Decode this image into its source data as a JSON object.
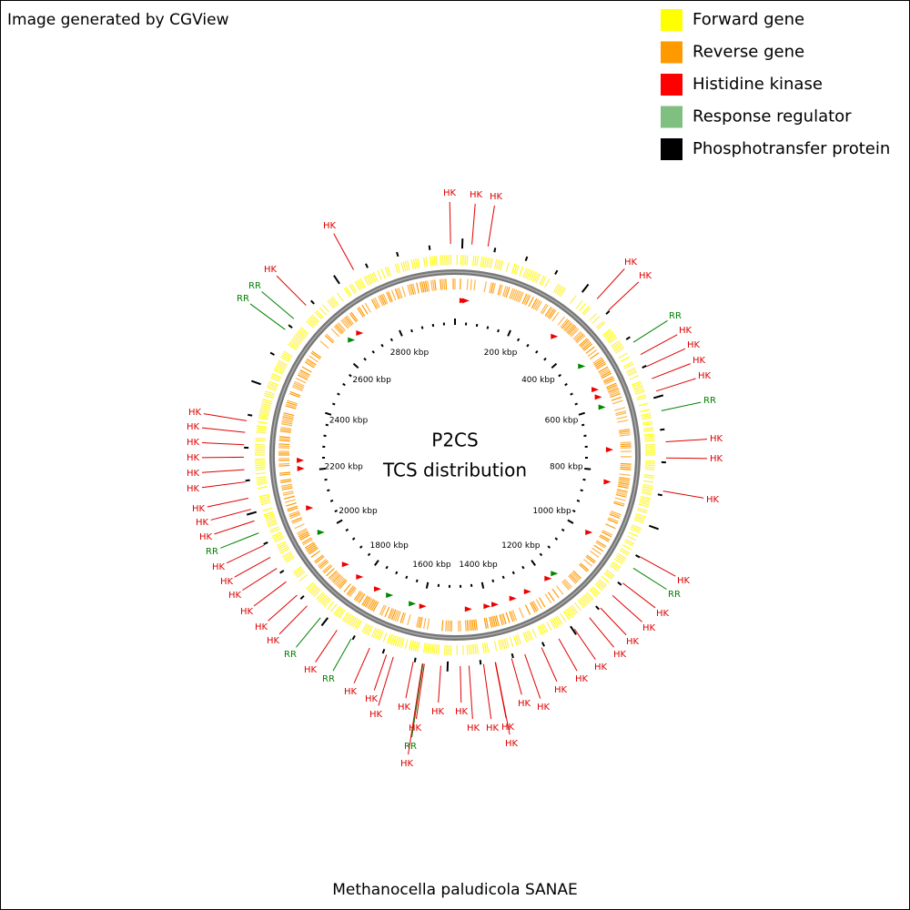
{
  "header": "Image generated by CGView",
  "legend": [
    {
      "label": "Forward gene",
      "color": "#ffff00"
    },
    {
      "label": "Reverse gene",
      "color": "#ff9900"
    },
    {
      "label": "Histidine kinase",
      "color": "#ff0000"
    },
    {
      "label": "Response regulator",
      "color": "#7fbf7f"
    },
    {
      "label": "Phosphotransfer protein",
      "color": "#000000"
    }
  ],
  "center": {
    "title": "P2CS",
    "subtitle": "TCS distribution"
  },
  "ruler": {
    "labels": [
      "200 kbp",
      "400 kbp",
      "600 kbp",
      "800 kbp",
      "1000 kbp",
      "1200 kbp",
      "1400 kbp",
      "1600 kbp",
      "1800 kbp",
      "2000 kbp",
      "2200 kbp",
      "2400 kbp",
      "2600 kbp",
      "2800 kbp"
    ]
  },
  "features": [
    {
      "label": "HK",
      "color": "#e00000"
    },
    {
      "label": "HK",
      "color": "#e00000"
    },
    {
      "label": "HK",
      "color": "#e00000"
    },
    {
      "label": "HK",
      "color": "#e00000"
    },
    {
      "label": "HK",
      "color": "#e00000"
    },
    {
      "label": "RR",
      "color": "#008000"
    },
    {
      "label": "RR",
      "color": "#008000"
    },
    {
      "label": "HK",
      "color": "#e00000"
    },
    {
      "label": "HK",
      "color": "#e00000"
    },
    {
      "label": "RR",
      "color": "#008000"
    },
    {
      "label": "HK",
      "color": "#e00000"
    },
    {
      "label": "HK",
      "color": "#e00000"
    },
    {
      "label": "HK",
      "color": "#e00000"
    },
    {
      "label": "HK",
      "color": "#e00000"
    },
    {
      "label": "RR",
      "color": "#008000"
    },
    {
      "label": "HK",
      "color": "#e00000"
    },
    {
      "label": "HK",
      "color": "#e00000"
    },
    {
      "label": "HK",
      "color": "#e00000"
    },
    {
      "label": "HK",
      "color": "#e00000"
    },
    {
      "label": "HK",
      "color": "#e00000"
    },
    {
      "label": "HK",
      "color": "#e00000"
    },
    {
      "label": "HK",
      "color": "#e00000"
    },
    {
      "label": "HK",
      "color": "#e00000"
    },
    {
      "label": "HK",
      "color": "#e00000"
    },
    {
      "label": "HK",
      "color": "#e00000"
    },
    {
      "label": "HK",
      "color": "#e00000"
    },
    {
      "label": "HK",
      "color": "#e00000"
    },
    {
      "label": "RR",
      "color": "#008000"
    },
    {
      "label": "HK",
      "color": "#e00000"
    },
    {
      "label": "HK",
      "color": "#e00000"
    },
    {
      "label": "HK",
      "color": "#e00000"
    },
    {
      "label": "HK",
      "color": "#e00000"
    },
    {
      "label": "HK",
      "color": "#e00000"
    },
    {
      "label": "HK",
      "color": "#e00000"
    },
    {
      "label": "RR",
      "color": "#008000"
    },
    {
      "label": "HK",
      "color": "#e00000"
    },
    {
      "label": "RR",
      "color": "#008000"
    },
    {
      "label": "HK",
      "color": "#e00000"
    },
    {
      "label": "HK",
      "color": "#e00000"
    },
    {
      "label": "HK",
      "color": "#e00000"
    },
    {
      "label": "HK",
      "color": "#e00000"
    },
    {
      "label": "HK",
      "color": "#e00000"
    },
    {
      "label": "RR",
      "color": "#008000"
    },
    {
      "label": "HK",
      "color": "#e00000"
    },
    {
      "label": "HK",
      "color": "#e00000"
    },
    {
      "label": "HK",
      "color": "#e00000"
    },
    {
      "label": "HK",
      "color": "#e00000"
    },
    {
      "label": "HK",
      "color": "#e00000"
    },
    {
      "label": "HK",
      "color": "#e00000"
    },
    {
      "label": "HK",
      "color": "#e00000"
    },
    {
      "label": "HK",
      "color": "#e00000"
    },
    {
      "label": "HK",
      "color": "#e00000"
    },
    {
      "label": "HK",
      "color": "#e00000"
    },
    {
      "label": "HK",
      "color": "#e00000"
    },
    {
      "label": "HK",
      "color": "#e00000"
    },
    {
      "label": "HK",
      "color": "#e00000"
    },
    {
      "label": "HK",
      "color": "#e00000"
    },
    {
      "label": "HK",
      "color": "#e00000"
    },
    {
      "label": "HK",
      "color": "#e00000"
    },
    {
      "label": "RR",
      "color": "#008000"
    },
    {
      "label": "HK",
      "color": "#e00000"
    }
  ],
  "footer": "Methanocella paludicola SANAE"
}
